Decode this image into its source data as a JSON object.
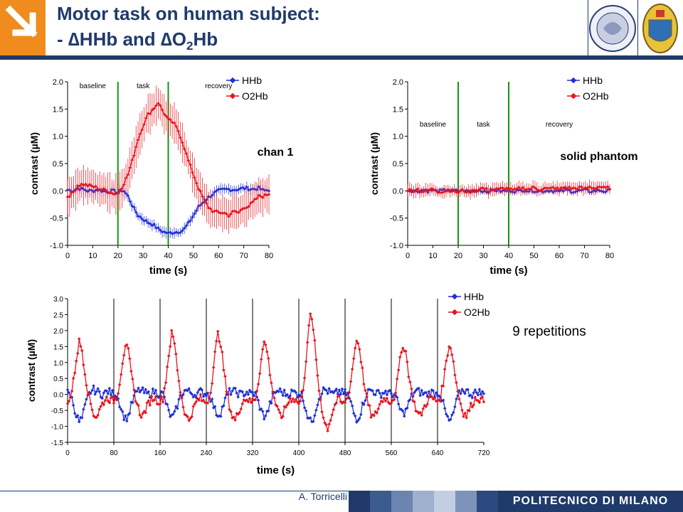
{
  "header": {
    "title_line1": "Motor task on human subject:",
    "title_line2_prefix": "- ∆HHb and ∆O",
    "title_line2_sub": "2",
    "title_line2_suffix": "Hb",
    "colors": {
      "navy": "#1f3a6b",
      "orange": "#f08c1e"
    }
  },
  "footer": {
    "author": "A. Torricelli",
    "brand": "POLITECNICO DI MILANO"
  },
  "annotations": {
    "chan1": "chan 1",
    "phantom": "solid phantom",
    "repetitions": "9 repetitions"
  },
  "chart_data": [
    {
      "type": "line",
      "xlabel": "time (s)",
      "ylabel": "contrast (µM)",
      "xlim": [
        0,
        80
      ],
      "ylim": [
        -1.0,
        2.0
      ],
      "xticks": [
        "0",
        "10",
        "20",
        "30",
        "40",
        "50",
        "60",
        "70",
        "80"
      ],
      "yticks": [
        "-1.0",
        "-0.5",
        "0.0",
        "0.5",
        "1.0",
        "1.5",
        "2.0"
      ],
      "phase_lines_x": [
        20,
        40
      ],
      "phase_labels": [
        "baseline",
        "task",
        "recovery"
      ],
      "legend": [
        "HHb",
        "O2Hb"
      ],
      "legend_position": "top-right",
      "series": [
        {
          "name": "HHb",
          "color": "#1f2fd6",
          "x": [
            0,
            2,
            4,
            6,
            8,
            10,
            12,
            14,
            16,
            18,
            20,
            22,
            24,
            26,
            28,
            30,
            32,
            34,
            36,
            38,
            40,
            42,
            44,
            46,
            48,
            50,
            52,
            54,
            56,
            58,
            60,
            62,
            64,
            66,
            68,
            70,
            72,
            74,
            76,
            78,
            80
          ],
          "values": [
            0.02,
            0.0,
            0.05,
            0.03,
            0.0,
            0.0,
            0.02,
            0.0,
            -0.02,
            0.0,
            -0.03,
            0.02,
            -0.1,
            -0.3,
            -0.45,
            -0.52,
            -0.58,
            -0.62,
            -0.7,
            -0.75,
            -0.78,
            -0.76,
            -0.75,
            -0.72,
            -0.6,
            -0.45,
            -0.3,
            -0.2,
            -0.12,
            -0.05,
            0.0,
            0.02,
            0.03,
            0.02,
            0.03,
            0.05,
            0.04,
            0.03,
            0.05,
            0.0,
            0.02
          ],
          "err": 0.1
        },
        {
          "name": "O2Hb",
          "color": "#e8131c",
          "x": [
            0,
            2,
            4,
            6,
            8,
            10,
            12,
            14,
            16,
            18,
            20,
            22,
            24,
            26,
            28,
            30,
            32,
            34,
            36,
            38,
            40,
            42,
            44,
            46,
            48,
            50,
            52,
            54,
            56,
            58,
            60,
            62,
            64,
            66,
            68,
            70,
            72,
            74,
            76,
            78,
            80
          ],
          "values": [
            -0.1,
            -0.05,
            0.1,
            0.12,
            0.1,
            0.08,
            0.05,
            0.02,
            0.0,
            -0.05,
            -0.05,
            0.1,
            0.3,
            0.6,
            0.95,
            1.2,
            1.4,
            1.5,
            1.62,
            1.45,
            1.3,
            1.25,
            1.1,
            0.85,
            0.55,
            0.3,
            0.05,
            -0.15,
            -0.3,
            -0.38,
            -0.4,
            -0.4,
            -0.45,
            -0.38,
            -0.4,
            -0.3,
            -0.28,
            -0.2,
            -0.1,
            -0.1,
            -0.05
          ],
          "err": 0.35
        }
      ]
    },
    {
      "type": "line",
      "xlabel": "time (s)",
      "ylabel": "contrast (µM)",
      "xlim": [
        0,
        80
      ],
      "ylim": [
        -1.0,
        2.0
      ],
      "xticks": [
        "0",
        "10",
        "20",
        "30",
        "40",
        "50",
        "60",
        "70",
        "80"
      ],
      "yticks": [
        "-1.0",
        "-0.5",
        "0.0",
        "0.5",
        "1.0",
        "1.5",
        "2.0"
      ],
      "phase_lines_x": [
        20,
        40
      ],
      "phase_labels": [
        "baseline",
        "task",
        "recovery"
      ],
      "legend": [
        "HHb",
        "O2Hb"
      ],
      "legend_position": "top-right",
      "series": [
        {
          "name": "HHb",
          "color": "#1f2fd6",
          "x": [
            0,
            2,
            4,
            6,
            8,
            10,
            12,
            14,
            16,
            18,
            20,
            22,
            24,
            26,
            28,
            30,
            32,
            34,
            36,
            38,
            40,
            42,
            44,
            46,
            48,
            50,
            52,
            54,
            56,
            58,
            60,
            62,
            64,
            66,
            68,
            70,
            72,
            74,
            76,
            78,
            80
          ],
          "values": [
            0.0,
            0.01,
            -0.01,
            0.02,
            0.0,
            0.01,
            -0.01,
            0.0,
            0.02,
            -0.01,
            0.0,
            0.01,
            -0.02,
            0.0,
            0.01,
            0.0,
            -0.01,
            0.02,
            0.0,
            -0.01,
            0.01,
            0.0,
            -0.01,
            0.02,
            0.0,
            0.01,
            -0.01,
            0.0,
            0.01,
            0.0,
            -0.02,
            0.01,
            0.0,
            -0.01,
            0.0,
            0.01,
            -0.01,
            0.0,
            0.01,
            -0.01,
            0.0
          ],
          "err": 0.05
        },
        {
          "name": "O2Hb",
          "color": "#e8131c",
          "x": [
            0,
            2,
            4,
            6,
            8,
            10,
            12,
            14,
            16,
            18,
            20,
            22,
            24,
            26,
            28,
            30,
            32,
            34,
            36,
            38,
            40,
            42,
            44,
            46,
            48,
            50,
            52,
            54,
            56,
            58,
            60,
            62,
            64,
            66,
            68,
            70,
            72,
            74,
            76,
            78,
            80
          ],
          "values": [
            0.02,
            0.0,
            0.03,
            -0.02,
            0.01,
            0.03,
            0.0,
            -0.02,
            0.02,
            0.0,
            -0.03,
            0.01,
            -0.02,
            0.0,
            0.03,
            0.05,
            0.0,
            0.03,
            0.02,
            0.05,
            0.03,
            0.0,
            0.04,
            0.05,
            0.03,
            0.06,
            0.02,
            0.05,
            0.03,
            0.06,
            0.02,
            0.07,
            0.05,
            0.04,
            0.06,
            0.03,
            0.07,
            0.05,
            0.08,
            0.04,
            0.06
          ],
          "err": 0.12
        }
      ]
    },
    {
      "type": "line",
      "xlabel": "time (s)",
      "ylabel": "contrast (µM)",
      "xlim": [
        0,
        720
      ],
      "ylim": [
        -1.5,
        3.0
      ],
      "xticks": [
        "0",
        "80",
        "160",
        "240",
        "320",
        "400",
        "480",
        "560",
        "640",
        "720"
      ],
      "yticks": [
        "-1.5",
        "-1.0",
        "-0.5",
        "0.0",
        "0.5",
        "1.0",
        "1.5",
        "2.0",
        "2.5",
        "3.0"
      ],
      "cycle_lines_x": [
        80,
        160,
        240,
        320,
        400,
        480,
        560,
        640
      ],
      "legend": [
        "HHb",
        "O2Hb"
      ],
      "legend_position": "top-right",
      "series": [
        {
          "name": "HHb",
          "color": "#1f2fd6",
          "cycle_length": 80,
          "cycle_shape": [
            0.05,
            0.0,
            -0.3,
            -0.65,
            -0.85,
            -0.75,
            -0.4,
            -0.1,
            0.1,
            0.15,
            0.1,
            0.05,
            0.0,
            0.05,
            0.1,
            0.05,
            0.0
          ],
          "amplitude_scale": [
            1.0,
            0.9,
            0.85,
            0.75,
            0.8,
            1.0,
            0.9,
            0.7,
            1.0
          ]
        },
        {
          "name": "O2Hb",
          "color": "#e8131c",
          "cycle_length": 80,
          "cycle_shape": [
            -0.2,
            -0.1,
            0.4,
            1.1,
            1.65,
            1.4,
            0.7,
            0.1,
            -0.3,
            -0.6,
            -0.7,
            -0.5,
            -0.3,
            -0.15,
            -0.1,
            -0.2,
            -0.2
          ],
          "amplitude_scale": [
            1.0,
            0.95,
            1.15,
            1.15,
            1.0,
            1.5,
            1.05,
            0.95,
            0.95
          ]
        }
      ]
    }
  ]
}
